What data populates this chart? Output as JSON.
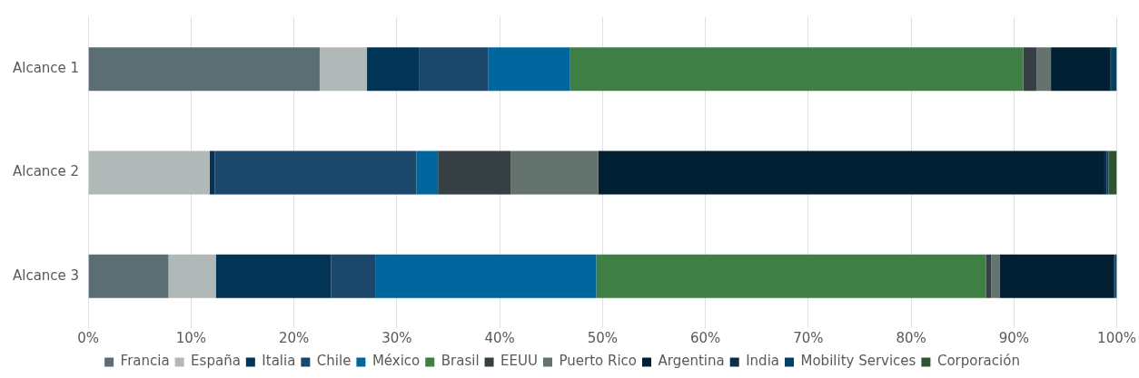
{
  "chart_data": {
    "type": "bar",
    "orientation": "horizontal",
    "stacked": true,
    "categories": [
      "Alcance 1",
      "Alcance 2",
      "Alcance 3"
    ],
    "series": [
      {
        "name": "Francia",
        "color": "#5b6e73",
        "values": [
          22.5,
          0,
          7.8
        ]
      },
      {
        "name": "España",
        "color": "#b1b8b8",
        "values": [
          4.6,
          11.8,
          4.6
        ]
      },
      {
        "name": "Italia",
        "color": "#023555",
        "values": [
          5.1,
          0.5,
          11.2
        ]
      },
      {
        "name": "Chile",
        "color": "#1b476a",
        "values": [
          6.7,
          19.6,
          4.3
        ]
      },
      {
        "name": "México",
        "color": "#00679e",
        "values": [
          7.9,
          2.1,
          21.5
        ]
      },
      {
        "name": "Brasil",
        "color": "#3f7f46",
        "values": [
          44.1,
          0,
          37.9
        ]
      },
      {
        "name": "EEUU",
        "color": "#363f44",
        "values": [
          1.3,
          7.1,
          0.5
        ]
      },
      {
        "name": "Puerto Rico",
        "color": "#65736f",
        "values": [
          1.4,
          8.5,
          0.8
        ]
      },
      {
        "name": "Argentina",
        "color": "#022033",
        "values": [
          5.8,
          49.2,
          11.1
        ]
      },
      {
        "name": "India",
        "color": "#0d2c48",
        "values": [
          0.1,
          0.2,
          0.1
        ]
      },
      {
        "name": "Mobility Services",
        "color": "#034163",
        "values": [
          0.5,
          0.2,
          0.2
        ]
      },
      {
        "name": "Corporación",
        "color": "#2f5430",
        "values": [
          0,
          0.8,
          0
        ]
      }
    ],
    "xlim": [
      0,
      100
    ],
    "xticks": [
      {
        "value": 0,
        "label": "0%"
      },
      {
        "value": 10,
        "label": "10%"
      },
      {
        "value": 20,
        "label": "20%"
      },
      {
        "value": 30,
        "label": "30%"
      },
      {
        "value": 40,
        "label": "40%"
      },
      {
        "value": 50,
        "label": "50%"
      },
      {
        "value": 60,
        "label": "60%"
      },
      {
        "value": 70,
        "label": "70%"
      },
      {
        "value": 80,
        "label": "80%"
      },
      {
        "value": 90,
        "label": "90%"
      },
      {
        "value": 100,
        "label": "100%"
      }
    ],
    "grid": "x",
    "legend": "bottom"
  }
}
